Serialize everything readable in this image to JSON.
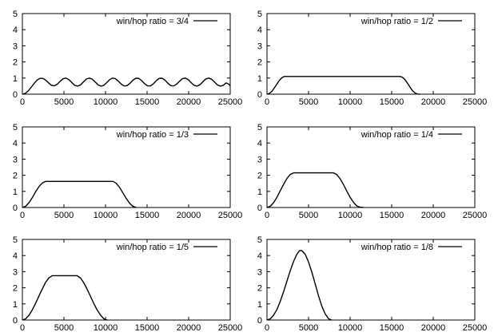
{
  "chart_data": [
    {
      "type": "line",
      "title": "",
      "xlabel": "",
      "ylabel": "",
      "xlim": [
        0,
        25000
      ],
      "ylim": [
        0,
        5
      ],
      "xticks": [
        "0",
        "5000",
        "10000",
        "15000",
        "20000",
        "25000"
      ],
      "yticks": [
        "0",
        "1",
        "2",
        "3",
        "4",
        "5"
      ],
      "grid": false,
      "legend": "top-right",
      "series": [
        {
          "name": "win/hop ratio = 3/4",
          "x": [
            0,
            350,
            700,
            1050,
            1400,
            1750,
            2100,
            2450,
            2800,
            3150,
            3500,
            3850,
            4200,
            4550,
            4900,
            5250,
            5600,
            5950,
            6300,
            6650,
            7000,
            7350,
            7700,
            8050,
            8400,
            8750,
            9100,
            9450,
            9800,
            10150,
            10500,
            10850,
            11200,
            11550,
            11900,
            12250,
            12600,
            12950,
            13300,
            13650,
            14000,
            14350,
            14700,
            15050,
            15400,
            15750,
            16100,
            16450,
            16800,
            17150,
            17500,
            17850,
            18200,
            18550,
            18900,
            19250,
            19600,
            19950,
            20300,
            20650,
            21000,
            21350,
            21700,
            22050,
            22400,
            22750,
            23100,
            23450,
            23800,
            24150,
            24500,
            24850,
            25000
          ],
          "y": [
            0.0,
            0.05,
            0.2,
            0.42,
            0.66,
            0.86,
            0.98,
            0.98,
            0.87,
            0.7,
            0.55,
            0.52,
            0.62,
            0.8,
            0.96,
            1.0,
            0.9,
            0.72,
            0.55,
            0.5,
            0.58,
            0.76,
            0.94,
            1.0,
            0.93,
            0.76,
            0.58,
            0.5,
            0.55,
            0.72,
            0.9,
            1.0,
            0.96,
            0.8,
            0.62,
            0.51,
            0.53,
            0.68,
            0.87,
            0.99,
            0.98,
            0.84,
            0.65,
            0.52,
            0.51,
            0.64,
            0.83,
            0.98,
            0.99,
            0.87,
            0.68,
            0.53,
            0.51,
            0.62,
            0.8,
            0.96,
            1.0,
            0.9,
            0.72,
            0.55,
            0.5,
            0.58,
            0.76,
            0.94,
            1.0,
            0.93,
            0.76,
            0.58,
            0.5,
            0.55,
            0.7,
            0.62,
            0.5
          ]
        }
      ]
    },
    {
      "type": "line",
      "title": "",
      "xlabel": "",
      "ylabel": "",
      "xlim": [
        0,
        25000
      ],
      "ylim": [
        0,
        5
      ],
      "xticks": [
        "0",
        "5000",
        "10000",
        "15000",
        "20000",
        "25000"
      ],
      "yticks": [
        "0",
        "1",
        "2",
        "3",
        "4",
        "5"
      ],
      "grid": false,
      "legend": "top-right",
      "series": [
        {
          "name": "win/hop ratio = 1/2",
          "x": [
            0,
            300,
            600,
            900,
            1200,
            1500,
            1800,
            2100,
            2400,
            16000,
            16300,
            16600,
            16900,
            17200,
            17500,
            17800,
            18100,
            18400
          ],
          "y": [
            0.0,
            0.05,
            0.18,
            0.4,
            0.64,
            0.86,
            1.02,
            1.1,
            1.1,
            1.1,
            1.05,
            0.9,
            0.68,
            0.44,
            0.22,
            0.08,
            0.01,
            0.0
          ]
        }
      ]
    },
    {
      "type": "line",
      "title": "",
      "xlabel": "",
      "ylabel": "",
      "xlim": [
        0,
        25000
      ],
      "ylim": [
        0,
        5
      ],
      "xticks": [
        "0",
        "5000",
        "10000",
        "15000",
        "20000",
        "25000"
      ],
      "yticks": [
        "0",
        "1",
        "2",
        "3",
        "4",
        "5"
      ],
      "grid": false,
      "legend": "top-right",
      "series": [
        {
          "name": "win/hop ratio = 1/3",
          "x": [
            0,
            400,
            800,
            1200,
            1600,
            2000,
            2400,
            2800,
            10900,
            11300,
            11700,
            12100,
            12500,
            12900,
            13300,
            13700
          ],
          "y": [
            0.0,
            0.08,
            0.3,
            0.62,
            0.98,
            1.3,
            1.52,
            1.62,
            1.62,
            1.5,
            1.24,
            0.9,
            0.56,
            0.26,
            0.07,
            0.0
          ]
        }
      ]
    },
    {
      "type": "line",
      "title": "",
      "xlabel": "",
      "ylabel": "",
      "xlim": [
        0,
        25000
      ],
      "ylim": [
        0,
        5
      ],
      "xticks": [
        "0",
        "5000",
        "10000",
        "15000",
        "20000",
        "25000"
      ],
      "yticks": [
        "0",
        "1",
        "2",
        "3",
        "4",
        "5"
      ],
      "grid": false,
      "legend": "top-right",
      "series": [
        {
          "name": "win/hop ratio = 1/4",
          "x": [
            0,
            400,
            800,
            1200,
            1600,
            2000,
            2400,
            2800,
            3200,
            8000,
            8400,
            8800,
            9200,
            9600,
            10000,
            10400,
            10800,
            11200,
            11600
          ],
          "y": [
            0.0,
            0.08,
            0.3,
            0.64,
            1.04,
            1.44,
            1.8,
            2.05,
            2.15,
            2.15,
            2.04,
            1.78,
            1.42,
            1.02,
            0.64,
            0.32,
            0.1,
            0.02,
            0.0
          ]
        }
      ]
    },
    {
      "type": "line",
      "title": "",
      "xlabel": "",
      "ylabel": "",
      "xlim": [
        0,
        25000
      ],
      "ylim": [
        0,
        5
      ],
      "xticks": [
        "0",
        "5000",
        "10000",
        "15000",
        "20000",
        "25000"
      ],
      "yticks": [
        "0",
        "1",
        "2",
        "3",
        "4",
        "5"
      ],
      "grid": false,
      "legend": "top-right",
      "series": [
        {
          "name": "win/hop ratio = 1/5",
          "x": [
            0,
            400,
            800,
            1200,
            1600,
            2000,
            2400,
            2800,
            3200,
            3600,
            6600,
            7000,
            7400,
            7800,
            8200,
            8600,
            9000,
            9400,
            9800,
            10200
          ],
          "y": [
            0.0,
            0.08,
            0.3,
            0.64,
            1.05,
            1.5,
            1.94,
            2.34,
            2.62,
            2.75,
            2.75,
            2.6,
            2.3,
            1.9,
            1.46,
            1.02,
            0.62,
            0.3,
            0.08,
            0.0
          ]
        }
      ]
    },
    {
      "type": "line",
      "title": "",
      "xlabel": "",
      "ylabel": "",
      "xlim": [
        0,
        25000
      ],
      "ylim": [
        0,
        5
      ],
      "xticks": [
        "0",
        "5000",
        "10000",
        "15000",
        "20000",
        "25000"
      ],
      "yticks": [
        "0",
        "1",
        "2",
        "3",
        "4",
        "5"
      ],
      "grid": false,
      "legend": "top-right",
      "series": [
        {
          "name": "win/hop ratio = 1/8",
          "x": [
            0,
            400,
            800,
            1200,
            1600,
            2000,
            2400,
            2800,
            3200,
            3600,
            3900,
            4200,
            4600,
            5000,
            5400,
            5800,
            6200,
            6600,
            7000,
            7400,
            7800
          ],
          "y": [
            0.0,
            0.08,
            0.3,
            0.66,
            1.16,
            1.76,
            2.42,
            3.06,
            3.64,
            4.08,
            4.3,
            4.3,
            4.08,
            3.6,
            2.96,
            2.24,
            1.5,
            0.86,
            0.38,
            0.08,
            0.0
          ]
        }
      ]
    }
  ]
}
